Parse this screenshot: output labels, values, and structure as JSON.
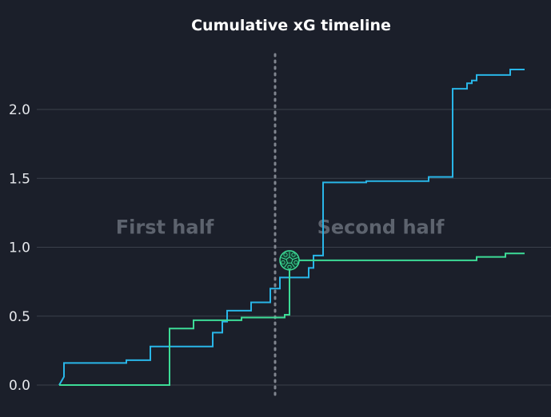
{
  "chart_data": {
    "type": "line",
    "title": "Cumulative xG timeline",
    "xlabel": "",
    "ylabel": "",
    "ylim": [
      0,
      2.4
    ],
    "xlim": [
      -3,
      101
    ],
    "yticks": [
      0.0,
      0.5,
      1.0,
      1.5,
      2.0
    ],
    "ytick_labels": [
      "0.0",
      "0.5",
      "1.0",
      "1.5",
      "2.0"
    ],
    "grid": true,
    "halftime_minute": 45,
    "annotations": [
      {
        "label": "First half",
        "x": 22,
        "y": 1.15
      },
      {
        "label": "Second half",
        "x": 67,
        "y": 1.15
      }
    ],
    "goal_marker": {
      "series": 1,
      "minute": 48,
      "y": 0.905,
      "icon": "soccer-ball-icon"
    },
    "colors": {
      "background": "#1b1f2a",
      "grid": "#3b404b",
      "halftime": "#80858f"
    },
    "series": [
      {
        "color": "#29b6e8",
        "points": [
          [
            0,
            0
          ],
          [
            1,
            0.06
          ],
          [
            1,
            0.16
          ],
          [
            14,
            0.16
          ],
          [
            14,
            0.18
          ],
          [
            19,
            0.18
          ],
          [
            19,
            0.28
          ],
          [
            32,
            0.28
          ],
          [
            32,
            0.38
          ],
          [
            34,
            0.38
          ],
          [
            34,
            0.46
          ],
          [
            35,
            0.46
          ],
          [
            35,
            0.54
          ],
          [
            40,
            0.54
          ],
          [
            40,
            0.6
          ],
          [
            44,
            0.6
          ],
          [
            44,
            0.7
          ],
          [
            46,
            0.7
          ],
          [
            46,
            0.78
          ],
          [
            52,
            0.78
          ],
          [
            52,
            0.85
          ],
          [
            53,
            0.85
          ],
          [
            53,
            0.94
          ],
          [
            55,
            0.94
          ],
          [
            55,
            1.47
          ],
          [
            64,
            1.47
          ],
          [
            64,
            1.48
          ],
          [
            77,
            1.48
          ],
          [
            77,
            1.51
          ],
          [
            82,
            1.51
          ],
          [
            82,
            2.15
          ],
          [
            85,
            2.15
          ],
          [
            85,
            2.19
          ],
          [
            86,
            2.19
          ],
          [
            86,
            2.21
          ],
          [
            87,
            2.21
          ],
          [
            87,
            2.25
          ],
          [
            94,
            2.25
          ],
          [
            94,
            2.29
          ],
          [
            97,
            2.29
          ]
        ]
      },
      {
        "color": "#3ddc97",
        "points": [
          [
            0,
            0
          ],
          [
            23,
            0
          ],
          [
            23,
            0.41
          ],
          [
            28,
            0.41
          ],
          [
            28,
            0.47
          ],
          [
            38,
            0.47
          ],
          [
            38,
            0.49
          ],
          [
            47,
            0.49
          ],
          [
            47,
            0.51
          ],
          [
            48,
            0.51
          ],
          [
            48,
            0.905
          ],
          [
            87,
            0.905
          ],
          [
            87,
            0.93
          ],
          [
            93,
            0.93
          ],
          [
            93,
            0.955
          ],
          [
            97,
            0.955
          ]
        ]
      }
    ]
  }
}
